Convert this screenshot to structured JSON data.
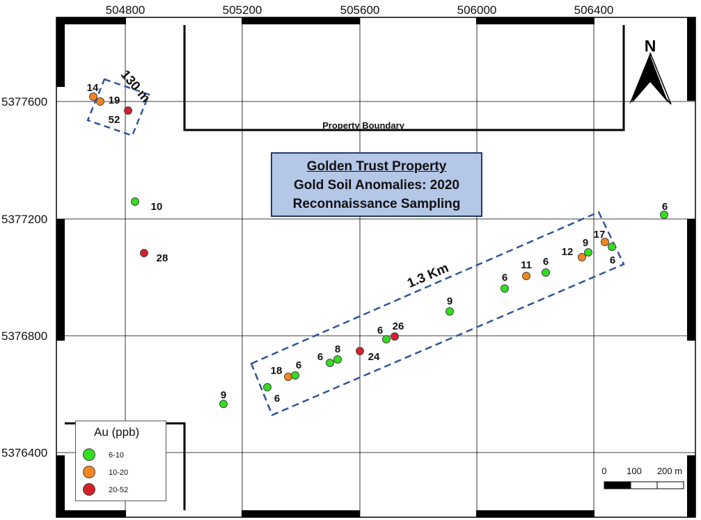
{
  "map": {
    "title_lines": [
      "Golden Trust Property",
      "Gold Soil Anomalies: 2020",
      "Reconnaissance Sampling"
    ],
    "boundary_label": "Property Boundary",
    "north_label": "N",
    "x_ticks": [
      "504800",
      "505200",
      "505600",
      "506000",
      "506400"
    ],
    "y_ticks": [
      "5377600",
      "5377200",
      "5376800",
      "5376400"
    ],
    "legend": {
      "title": "Au (ppb)",
      "items": [
        {
          "label": "6-10",
          "color": "#33dd22"
        },
        {
          "label": "10-20",
          "color": "#f5861f"
        },
        {
          "label": "20-52",
          "color": "#d4202a"
        }
      ]
    },
    "scale_bar": {
      "labels": [
        "0",
        "100",
        "200 m"
      ]
    },
    "zone_labels": {
      "small": "130 m",
      "large": "1.3 Km"
    },
    "samples": [
      {
        "value": "14",
        "class": "10-20"
      },
      {
        "value": "19",
        "class": "10-20"
      },
      {
        "value": "52",
        "class": "20-52"
      },
      {
        "value": "10",
        "class": "6-10"
      },
      {
        "value": "28",
        "class": "20-52"
      },
      {
        "value": "9",
        "class": "6-10"
      },
      {
        "value": "6",
        "class": "6-10"
      },
      {
        "value": "18",
        "class": "10-20"
      },
      {
        "value": "6",
        "class": "6-10"
      },
      {
        "value": "6",
        "class": "6-10"
      },
      {
        "value": "8",
        "class": "6-10"
      },
      {
        "value": "24",
        "class": "20-52"
      },
      {
        "value": "6",
        "class": "6-10"
      },
      {
        "value": "26",
        "class": "20-52"
      },
      {
        "value": "9",
        "class": "6-10"
      },
      {
        "value": "6",
        "class": "6-10"
      },
      {
        "value": "11",
        "class": "10-20"
      },
      {
        "value": "6",
        "class": "6-10"
      },
      {
        "value": "12",
        "class": "10-20"
      },
      {
        "value": "9",
        "class": "6-10"
      },
      {
        "value": "17",
        "class": "10-20"
      },
      {
        "value": "6",
        "class": "6-10"
      },
      {
        "value": "6",
        "class": "6-10"
      }
    ]
  }
}
